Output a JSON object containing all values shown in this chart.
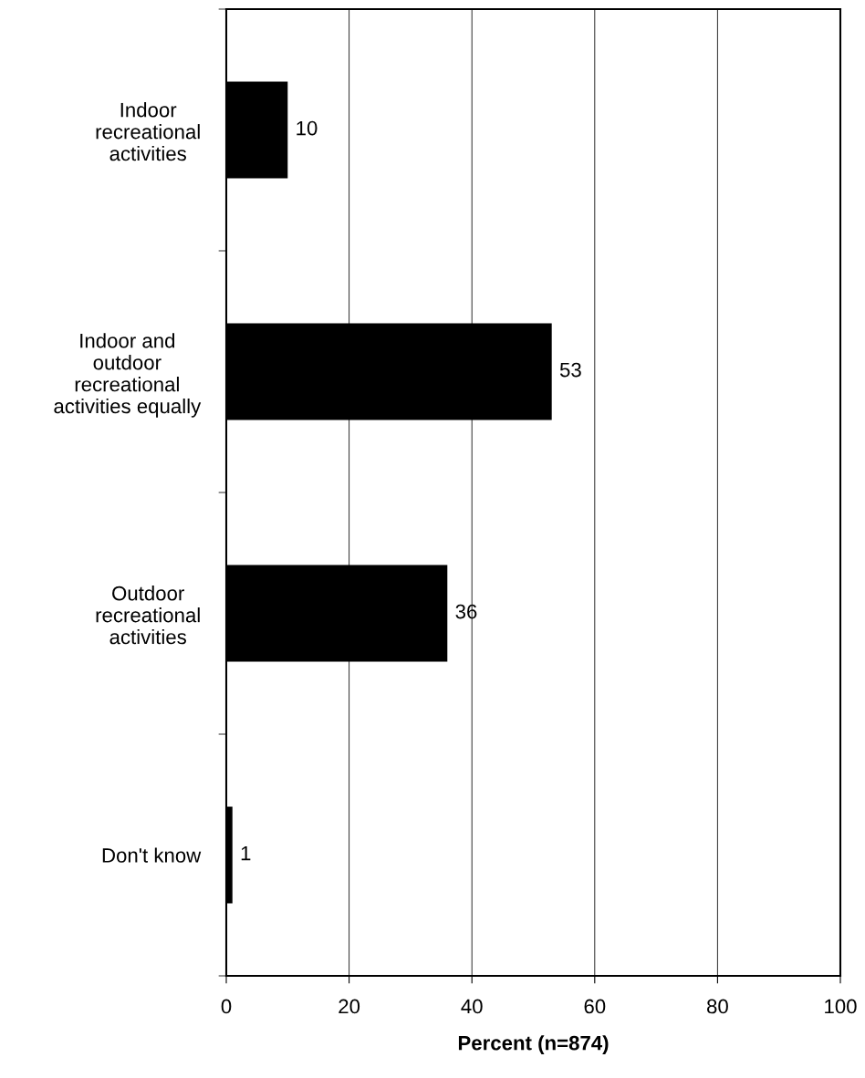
{
  "chart_data": {
    "type": "bar",
    "orientation": "horizontal",
    "categories": [
      "Indoor\nrecreational\nactivities",
      "Indoor and\noutdoor\nrecreational\nactivities equally",
      "Outdoor\nrecreational\nactivities",
      "Don't know"
    ],
    "values": [
      10,
      53,
      36,
      1
    ],
    "color": "#000000",
    "xlabel": "Percent (n=874)",
    "xlim": [
      0,
      100
    ],
    "xticks": [
      0,
      20,
      40,
      60,
      80,
      100
    ],
    "grid": "x",
    "data_labels": true,
    "legend": false
  }
}
